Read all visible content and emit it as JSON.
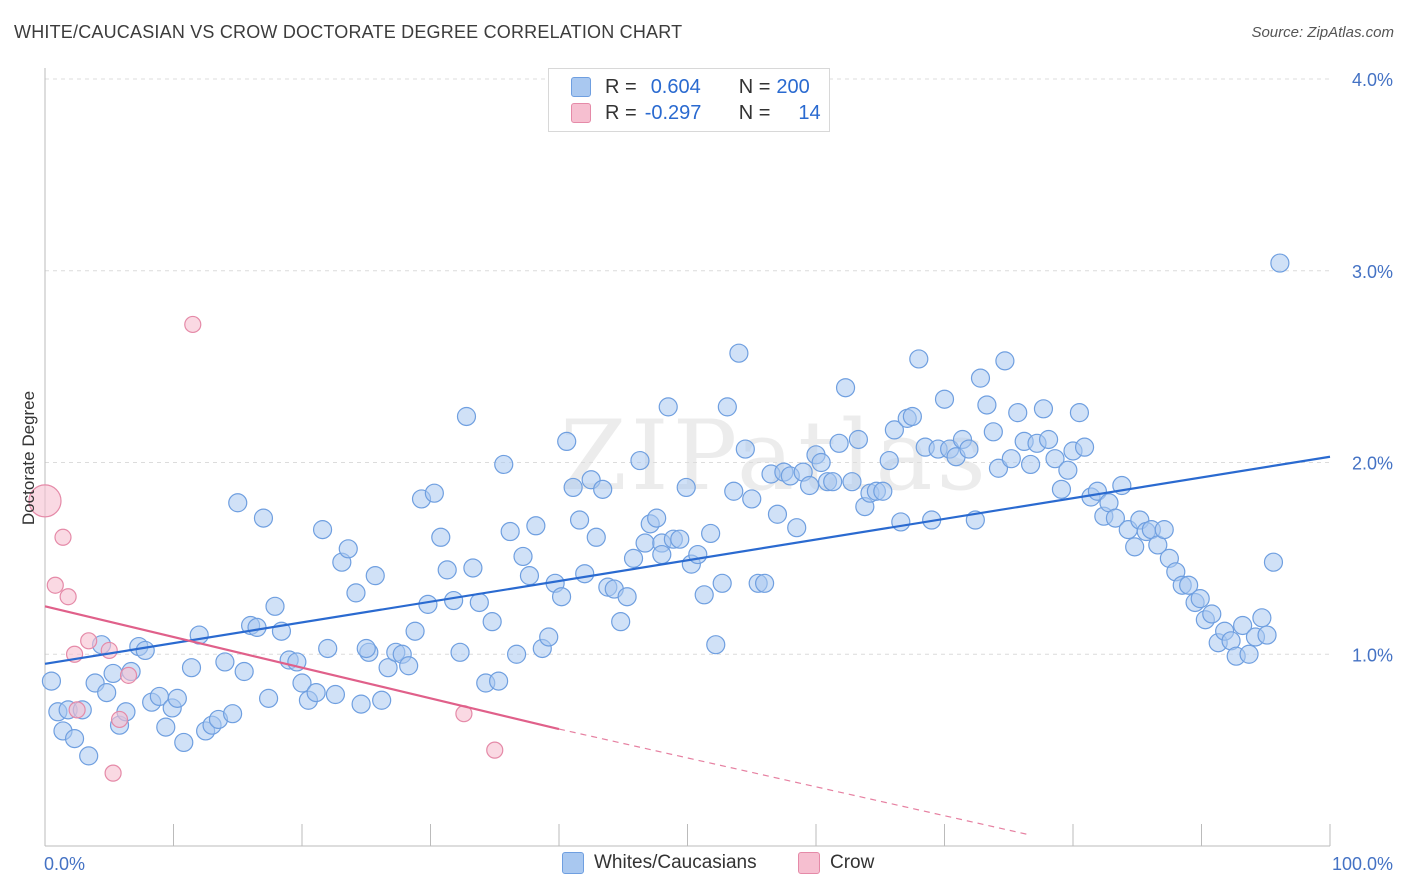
{
  "title": "WHITE/CAUCASIAN VS CROW DOCTORATE DEGREE CORRELATION CHART",
  "source": "Source: ZipAtlas.com",
  "watermark": "ZIPatlas",
  "legend": {
    "rows": [
      {
        "r_label": "R =",
        "r_value": "0.604",
        "n_label": "N =",
        "n_value": "200",
        "color": "#a9c8f0",
        "border": "#6f9fe0"
      },
      {
        "r_label": "R =",
        "r_value": "-0.297",
        "n_label": "N =",
        "n_value": "14",
        "color": "#f6bfd0",
        "border": "#e58aa8"
      }
    ]
  },
  "bottom_legend": [
    {
      "label": "Whites/Caucasians",
      "color": "#a9c8f0",
      "border": "#6f9fe0"
    },
    {
      "label": "Crow",
      "color": "#f6bfd0",
      "border": "#e58aa8"
    }
  ],
  "chart_data": {
    "type": "scatter",
    "title": "WHITE/CAUCASIAN VS CROW DOCTORATE DEGREE CORRELATION CHART",
    "xlabel": "",
    "ylabel": "Doctorate Degree",
    "xlim": [
      0,
      100
    ],
    "ylim": [
      0,
      4.0
    ],
    "x_tick_labels": [
      "0.0%",
      "100.0%"
    ],
    "y_tick_labels": [
      "1.0%",
      "2.0%",
      "3.0%",
      "4.0%"
    ],
    "y_ticks": [
      1.0,
      2.0,
      3.0,
      4.0
    ],
    "grid": true,
    "legend_position": "top-center",
    "series": [
      {
        "name": "Whites/Caucasians",
        "color": "#a9c8f0",
        "edge": "#6f9fe0",
        "trend": {
          "x": [
            0,
            100
          ],
          "y": [
            0.95,
            2.03
          ],
          "color": "#2a6ad0"
        },
        "points": [
          [
            0.5,
            0.86
          ],
          [
            1.0,
            0.7
          ],
          [
            1.4,
            0.6
          ],
          [
            1.8,
            0.71
          ],
          [
            2.3,
            0.56
          ],
          [
            2.9,
            0.71
          ],
          [
            3.4,
            0.47
          ],
          [
            3.9,
            0.85
          ],
          [
            4.4,
            1.05
          ],
          [
            4.8,
            0.8
          ],
          [
            5.3,
            0.9
          ],
          [
            5.8,
            0.63
          ],
          [
            6.3,
            0.7
          ],
          [
            6.7,
            0.91
          ],
          [
            7.3,
            1.04
          ],
          [
            7.8,
            1.02
          ],
          [
            8.3,
            0.75
          ],
          [
            8.9,
            0.78
          ],
          [
            9.4,
            0.62
          ],
          [
            9.9,
            0.72
          ],
          [
            10.3,
            0.77
          ],
          [
            10.8,
            0.54
          ],
          [
            11.4,
            0.93
          ],
          [
            12.0,
            1.1
          ],
          [
            12.5,
            0.6
          ],
          [
            13.0,
            0.63
          ],
          [
            13.5,
            0.66
          ],
          [
            14.0,
            0.96
          ],
          [
            14.6,
            0.69
          ],
          [
            15.0,
            1.79
          ],
          [
            15.5,
            0.91
          ],
          [
            16.0,
            1.15
          ],
          [
            16.5,
            1.14
          ],
          [
            17.0,
            1.71
          ],
          [
            17.4,
            0.77
          ],
          [
            17.9,
            1.25
          ],
          [
            18.4,
            1.12
          ],
          [
            19.0,
            0.97
          ],
          [
            19.6,
            0.96
          ],
          [
            20.0,
            0.85
          ],
          [
            20.5,
            0.76
          ],
          [
            21.1,
            0.8
          ],
          [
            21.6,
            1.65
          ],
          [
            22.0,
            1.03
          ],
          [
            22.6,
            0.79
          ],
          [
            23.1,
            1.48
          ],
          [
            23.6,
            1.55
          ],
          [
            24.2,
            1.32
          ],
          [
            24.6,
            0.74
          ],
          [
            25.2,
            1.01
          ],
          [
            25.7,
            1.41
          ],
          [
            26.2,
            0.76
          ],
          [
            26.7,
            0.93
          ],
          [
            27.3,
            1.01
          ],
          [
            27.8,
            1.0
          ],
          [
            28.3,
            0.94
          ],
          [
            28.8,
            1.12
          ],
          [
            29.3,
            1.81
          ],
          [
            29.8,
            1.26
          ],
          [
            30.3,
            1.84
          ],
          [
            30.8,
            1.61
          ],
          [
            31.3,
            1.44
          ],
          [
            31.8,
            1.28
          ],
          [
            32.3,
            1.01
          ],
          [
            32.8,
            2.24
          ],
          [
            33.3,
            1.45
          ],
          [
            33.8,
            1.27
          ],
          [
            34.3,
            0.85
          ],
          [
            34.8,
            1.17
          ],
          [
            35.3,
            0.86
          ],
          [
            35.7,
            1.99
          ],
          [
            36.2,
            1.64
          ],
          [
            36.7,
            1.0
          ],
          [
            37.2,
            1.51
          ],
          [
            37.7,
            1.41
          ],
          [
            38.2,
            1.67
          ],
          [
            38.7,
            1.03
          ],
          [
            39.2,
            1.09
          ],
          [
            39.7,
            1.37
          ],
          [
            40.2,
            1.3
          ],
          [
            40.6,
            2.11
          ],
          [
            41.1,
            1.87
          ],
          [
            41.6,
            1.7
          ],
          [
            42.0,
            1.42
          ],
          [
            42.5,
            1.91
          ],
          [
            42.9,
            1.61
          ],
          [
            43.4,
            1.86
          ],
          [
            43.8,
            1.35
          ],
          [
            44.3,
            1.34
          ],
          [
            44.8,
            1.17
          ],
          [
            45.3,
            1.3
          ],
          [
            45.8,
            1.5
          ],
          [
            46.3,
            2.01
          ],
          [
            46.7,
            1.58
          ],
          [
            47.1,
            1.68
          ],
          [
            47.6,
            1.71
          ],
          [
            48.0,
            1.58
          ],
          [
            48.5,
            2.29
          ],
          [
            48.9,
            1.6
          ],
          [
            49.4,
            1.6
          ],
          [
            49.9,
            1.87
          ],
          [
            50.3,
            1.47
          ],
          [
            50.8,
            1.52
          ],
          [
            51.3,
            1.31
          ],
          [
            51.8,
            1.63
          ],
          [
            52.2,
            1.05
          ],
          [
            52.7,
            1.37
          ],
          [
            53.1,
            2.29
          ],
          [
            53.6,
            1.85
          ],
          [
            54.0,
            2.57
          ],
          [
            54.5,
            2.07
          ],
          [
            55.0,
            1.81
          ],
          [
            55.5,
            1.37
          ],
          [
            56.0,
            1.37
          ],
          [
            56.5,
            1.94
          ],
          [
            57.0,
            1.73
          ],
          [
            57.5,
            1.95
          ],
          [
            58.0,
            1.93
          ],
          [
            58.5,
            1.66
          ],
          [
            59.0,
            1.95
          ],
          [
            59.5,
            1.88
          ],
          [
            60.0,
            2.04
          ],
          [
            60.4,
            2.0
          ],
          [
            60.9,
            1.9
          ],
          [
            61.3,
            1.9
          ],
          [
            61.8,
            2.1
          ],
          [
            62.3,
            2.39
          ],
          [
            62.8,
            1.9
          ],
          [
            63.3,
            2.12
          ],
          [
            63.8,
            1.77
          ],
          [
            64.2,
            1.84
          ],
          [
            64.7,
            1.85
          ],
          [
            65.2,
            1.85
          ],
          [
            65.7,
            2.01
          ],
          [
            66.1,
            2.17
          ],
          [
            66.6,
            1.69
          ],
          [
            67.1,
            2.23
          ],
          [
            67.5,
            2.24
          ],
          [
            68.0,
            2.54
          ],
          [
            68.5,
            2.08
          ],
          [
            69.0,
            1.7
          ],
          [
            69.5,
            2.07
          ],
          [
            70.0,
            2.33
          ],
          [
            70.4,
            2.07
          ],
          [
            70.9,
            2.03
          ],
          [
            71.4,
            2.12
          ],
          [
            71.9,
            2.07
          ],
          [
            72.4,
            1.7
          ],
          [
            72.8,
            2.44
          ],
          [
            73.3,
            2.3
          ],
          [
            73.8,
            2.16
          ],
          [
            74.2,
            1.97
          ],
          [
            74.7,
            2.53
          ],
          [
            75.2,
            2.02
          ],
          [
            75.7,
            2.26
          ],
          [
            76.2,
            2.11
          ],
          [
            76.7,
            1.99
          ],
          [
            77.2,
            2.1
          ],
          [
            77.7,
            2.28
          ],
          [
            78.1,
            2.12
          ],
          [
            78.6,
            2.02
          ],
          [
            79.1,
            1.86
          ],
          [
            79.6,
            1.96
          ],
          [
            80.0,
            2.06
          ],
          [
            80.5,
            2.26
          ],
          [
            80.9,
            2.08
          ],
          [
            81.4,
            1.82
          ],
          [
            81.9,
            1.85
          ],
          [
            82.4,
            1.72
          ],
          [
            82.8,
            1.79
          ],
          [
            83.3,
            1.71
          ],
          [
            83.8,
            1.88
          ],
          [
            84.3,
            1.65
          ],
          [
            84.8,
            1.56
          ],
          [
            85.2,
            1.7
          ],
          [
            85.7,
            1.64
          ],
          [
            86.1,
            1.65
          ],
          [
            86.6,
            1.57
          ],
          [
            87.1,
            1.65
          ],
          [
            87.5,
            1.5
          ],
          [
            88.0,
            1.43
          ],
          [
            88.5,
            1.36
          ],
          [
            89.0,
            1.36
          ],
          [
            89.5,
            1.27
          ],
          [
            89.9,
            1.29
          ],
          [
            90.3,
            1.18
          ],
          [
            90.8,
            1.21
          ],
          [
            91.3,
            1.06
          ],
          [
            91.8,
            1.12
          ],
          [
            92.3,
            1.07
          ],
          [
            92.7,
            0.99
          ],
          [
            93.2,
            1.15
          ],
          [
            93.7,
            1.0
          ],
          [
            94.2,
            1.09
          ],
          [
            94.7,
            1.19
          ],
          [
            95.1,
            1.1
          ],
          [
            95.6,
            1.48
          ],
          [
            96.1,
            3.04
          ],
          [
            25.0,
            1.03
          ],
          [
            48.0,
            1.52
          ]
        ]
      },
      {
        "name": "Crow",
        "color": "#f6bfd0",
        "edge": "#e58aa8",
        "trend": {
          "x": [
            0,
            40
          ],
          "y": [
            1.25,
            0.61
          ],
          "color": "#e0608a",
          "dashed_to": [
            76.5,
            0.06
          ]
        },
        "points": [
          [
            0.0,
            1.8
          ],
          [
            0.8,
            1.36
          ],
          [
            1.4,
            1.61
          ],
          [
            1.8,
            1.3
          ],
          [
            2.3,
            1.0
          ],
          [
            2.5,
            0.71
          ],
          [
            3.4,
            1.07
          ],
          [
            5.0,
            1.02
          ],
          [
            5.3,
            0.38
          ],
          [
            5.8,
            0.66
          ],
          [
            6.5,
            0.89
          ],
          [
            11.5,
            2.72
          ],
          [
            32.6,
            0.69
          ],
          [
            35.0,
            0.5
          ]
        ]
      }
    ]
  }
}
